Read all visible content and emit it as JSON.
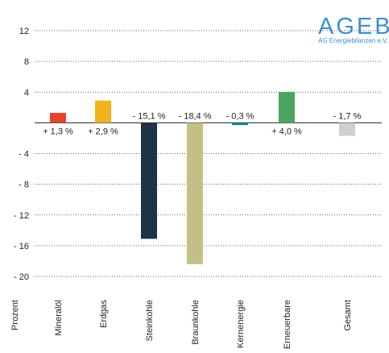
{
  "logo": {
    "main": "AGEB",
    "sub": "AG Energiebilanzen e.V."
  },
  "chart_data": {
    "type": "bar",
    "ylabel": "Prozent",
    "ylim": [
      -20,
      12
    ],
    "yticks": [
      12,
      8,
      4,
      0,
      -4,
      -8,
      -12,
      -16,
      -20
    ],
    "ytick_labels": [
      "12",
      "8",
      "4",
      "",
      "- 4",
      "- 8",
      "- 12",
      "- 16",
      "- 20"
    ],
    "grid": true,
    "categories": [
      "Mineralöl",
      "Erdgas",
      "Steinkohle",
      "Braunkohle",
      "Kernenergie",
      "Erneuerbare",
      "Gesamt"
    ],
    "values": [
      1.3,
      2.9,
      -15.1,
      -18.4,
      -0.3,
      4.0,
      -1.7
    ],
    "value_labels": [
      "+ 1,3 %",
      "+ 2,9 %",
      "- 15,1 %",
      "- 18,4 %",
      "- 0,3 %",
      "+ 4,0 %",
      "- 1,7 %"
    ],
    "colors": [
      "#e3452c",
      "#f2b21e",
      "#1f3347",
      "#c4bf86",
      "#1a8a8e",
      "#4aa463",
      "#cfcfcf"
    ]
  }
}
